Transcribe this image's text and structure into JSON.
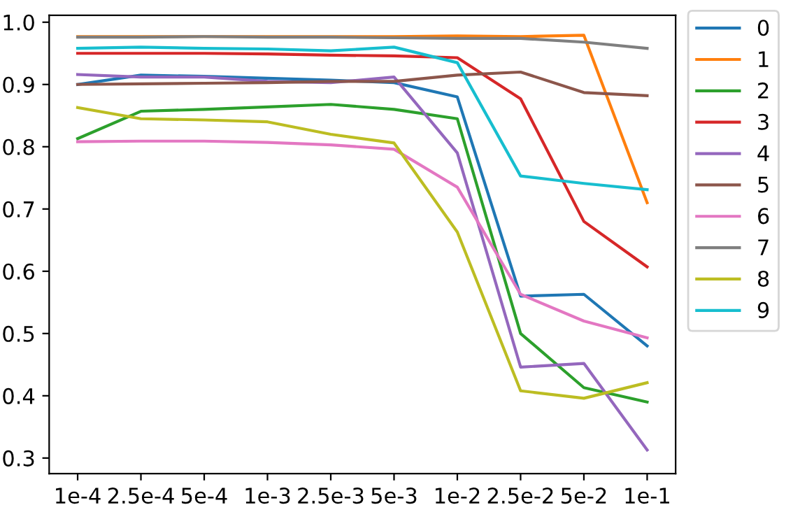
{
  "chart_data": {
    "type": "line",
    "categories": [
      "1e-4",
      "2.5e-4",
      "5e-4",
      "1e-3",
      "2.5e-3",
      "5e-3",
      "1e-2",
      "2.5e-2",
      "5e-2",
      "1e-1"
    ],
    "ylim": [
      0.275,
      1.011
    ],
    "yticks": [
      0.3,
      0.4,
      0.5,
      0.6,
      0.7,
      0.8,
      0.9,
      {
        "value": 1,
        "label": "1.0"
      }
    ],
    "grid": false,
    "legend": "top right",
    "marker": "none",
    "line_style": "solid",
    "series": [
      {
        "name": "0",
        "color": "#1f77b4",
        "values": [
          0.9,
          0.915,
          0.913,
          0.91,
          0.907,
          0.903,
          0.88,
          0.56,
          0.563,
          0.48
        ]
      },
      {
        "name": "1",
        "color": "#ff7f0e",
        "values": [
          0.977,
          0.977,
          0.977,
          0.977,
          0.977,
          0.977,
          0.978,
          0.977,
          0.979,
          0.71
        ]
      },
      {
        "name": "2",
        "color": "#2ca02c",
        "values": [
          0.813,
          0.857,
          0.86,
          0.864,
          0.868,
          0.86,
          0.845,
          0.5,
          0.413,
          0.39
        ]
      },
      {
        "name": "3",
        "color": "#d62728",
        "values": [
          0.95,
          0.95,
          0.95,
          0.949,
          0.947,
          0.946,
          0.943,
          0.877,
          0.68,
          0.607
        ]
      },
      {
        "name": "4",
        "color": "#9467bd",
        "values": [
          0.916,
          0.912,
          0.912,
          0.905,
          0.903,
          0.912,
          0.79,
          0.446,
          0.452,
          0.313
        ]
      },
      {
        "name": "5",
        "color": "#8c564b",
        "values": [
          0.9,
          0.901,
          0.902,
          0.903,
          0.905,
          0.905,
          0.915,
          0.92,
          0.887,
          0.882
        ]
      },
      {
        "name": "6",
        "color": "#e377c2",
        "values": [
          0.808,
          0.809,
          0.809,
          0.807,
          0.803,
          0.796,
          0.735,
          0.563,
          0.52,
          0.493
        ]
      },
      {
        "name": "7",
        "color": "#7f7f7f",
        "values": [
          0.976,
          0.976,
          0.977,
          0.976,
          0.976,
          0.975,
          0.974,
          0.974,
          0.968,
          0.958
        ]
      },
      {
        "name": "8",
        "color": "#bcbd22",
        "values": [
          0.863,
          0.845,
          0.843,
          0.84,
          0.82,
          0.806,
          0.663,
          0.408,
          0.396,
          0.421
        ]
      },
      {
        "name": "9",
        "color": "#17becf",
        "values": [
          0.958,
          0.96,
          0.958,
          0.957,
          0.954,
          0.96,
          0.935,
          0.753,
          0.741,
          0.731
        ]
      }
    ]
  }
}
